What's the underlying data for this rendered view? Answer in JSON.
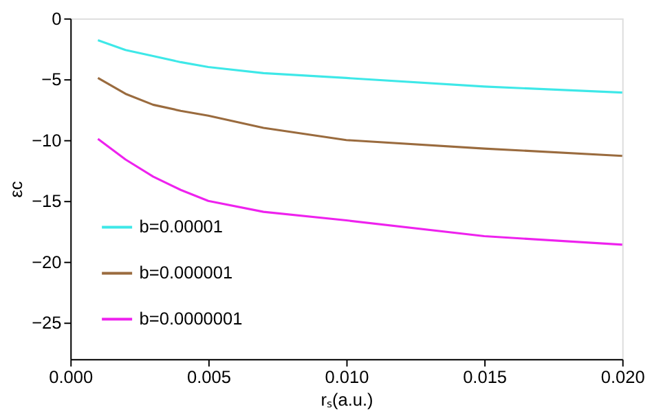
{
  "chart_data": {
    "type": "line",
    "xlabel": "rₛ(a.u.)",
    "ylabel": "εc",
    "x": [
      0.001,
      0.002,
      0.003,
      0.004,
      0.005,
      0.007,
      0.01,
      0.015,
      0.02
    ],
    "series": [
      {
        "name": "b=0.00001",
        "color": "#3ee8e8",
        "values": [
          -1.8,
          -2.6,
          -3.1,
          -3.6,
          -4.0,
          -4.5,
          -4.9,
          -5.6,
          -6.1
        ]
      },
      {
        "name": "b=0.000001",
        "color": "#9a6b3e",
        "values": [
          -4.9,
          -6.2,
          -7.1,
          -7.6,
          -8.0,
          -9.0,
          -10.0,
          -10.7,
          -11.3
        ]
      },
      {
        "name": "b=0.0000001",
        "color": "#ee22ee",
        "values": [
          -9.9,
          -11.6,
          -13.0,
          -14.1,
          -15.0,
          -15.9,
          -16.6,
          -17.9,
          -18.6
        ]
      }
    ],
    "xlim": [
      0,
      0.02
    ],
    "xticks": [
      {
        "value": 0,
        "label": "0.000"
      },
      0.005,
      {
        "value": 0.01,
        "label": "0.010"
      },
      0.015,
      {
        "value": 0.02,
        "label": "0.020"
      }
    ],
    "ylim": [
      -28,
      0
    ],
    "yticks": [
      -25,
      -20,
      -15,
      -10,
      -5,
      0
    ],
    "grid": false,
    "legend": "bottom left",
    "marker": "none",
    "line_style": "solid"
  }
}
